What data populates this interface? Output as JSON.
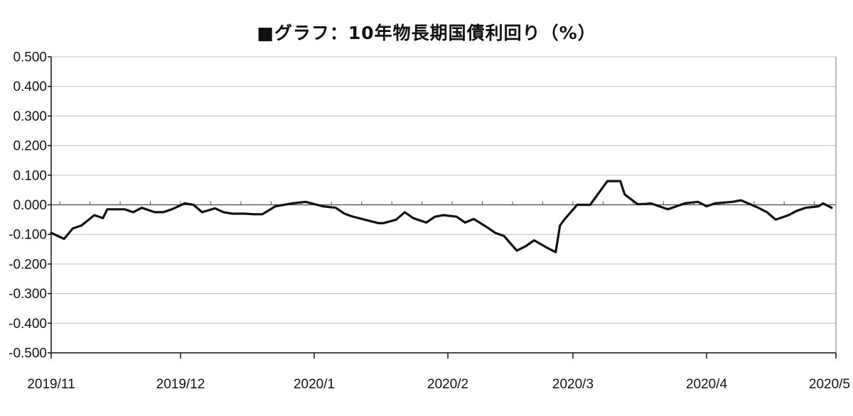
{
  "chart_data": {
    "type": "line",
    "title": "■グラフ：10年物長期国債利回り（%）",
    "xlabel": "",
    "ylabel": "",
    "ylim": [
      -0.5,
      0.5
    ],
    "yticks": [
      "0.500",
      "0.400",
      "0.300",
      "0.200",
      "0.100",
      "0.000",
      "-0.100",
      "-0.200",
      "-0.300",
      "-0.400",
      "-0.500"
    ],
    "ytick_values": [
      0.5,
      0.4,
      0.3,
      0.2,
      0.1,
      0.0,
      -0.1,
      -0.2,
      -0.3,
      -0.4,
      -0.5
    ],
    "xlim": [
      "2019-11-01",
      "2020-05-01"
    ],
    "xticks": [
      {
        "label": "2019/11",
        "date": "2019-11-01"
      },
      {
        "label": "2019/12",
        "date": "2019-12-01"
      },
      {
        "label": "2020/1",
        "date": "2020-01-01"
      },
      {
        "label": "2020/2",
        "date": "2020-02-01"
      },
      {
        "label": "2020/3",
        "date": "2020-03-01"
      },
      {
        "label": "2020/4",
        "date": "2020-04-01"
      },
      {
        "label": "2020/5",
        "date": "2020-05-01"
      }
    ],
    "grid": true,
    "line_color": "#111111",
    "grid_color": "#bbbbbb",
    "series": [
      {
        "x": [
          "2019-11-01",
          "2019-11-04",
          "2019-11-06",
          "2019-11-08",
          "2019-11-11",
          "2019-11-13",
          "2019-11-14",
          "2019-11-18",
          "2019-11-20",
          "2019-11-22",
          "2019-11-25",
          "2019-11-27",
          "2019-11-29",
          "2019-12-02",
          "2019-12-04",
          "2019-12-06",
          "2019-12-09",
          "2019-12-11",
          "2019-12-13",
          "2019-12-16",
          "2019-12-18",
          "2019-12-20",
          "2019-12-23",
          "2019-12-25",
          "2019-12-27",
          "2019-12-30",
          "2020-01-03",
          "2020-01-06",
          "2020-01-08",
          "2020-01-10",
          "2020-01-14",
          "2020-01-16",
          "2020-01-17",
          "2020-01-20",
          "2020-01-22",
          "2020-01-24",
          "2020-01-27",
          "2020-01-29",
          "2020-01-31",
          "2020-02-03",
          "2020-02-05",
          "2020-02-07",
          "2020-02-10",
          "2020-02-12",
          "2020-02-14",
          "2020-02-17",
          "2020-02-19",
          "2020-02-21",
          "2020-02-24",
          "2020-02-26",
          "2020-02-27",
          "2020-02-28",
          "2020-03-02",
          "2020-03-03",
          "2020-03-05",
          "2020-03-09",
          "2020-03-10",
          "2020-03-12",
          "2020-03-13",
          "2020-03-16",
          "2020-03-18",
          "2020-03-19",
          "2020-03-23",
          "2020-03-25",
          "2020-03-27",
          "2020-03-30",
          "2020-04-01",
          "2020-04-03",
          "2020-04-07",
          "2020-04-09",
          "2020-04-13",
          "2020-04-15",
          "2020-04-17",
          "2020-04-20",
          "2020-04-22",
          "2020-04-24",
          "2020-04-27",
          "2020-04-28",
          "2020-04-30"
        ],
        "y": [
          -0.095,
          -0.115,
          -0.08,
          -0.07,
          -0.035,
          -0.045,
          -0.015,
          -0.015,
          -0.025,
          -0.01,
          -0.025,
          -0.025,
          -0.015,
          0.005,
          0.0,
          -0.025,
          -0.012,
          -0.025,
          -0.03,
          -0.03,
          -0.032,
          -0.032,
          -0.005,
          0.0,
          0.005,
          0.01,
          -0.005,
          -0.01,
          -0.03,
          -0.04,
          -0.055,
          -0.062,
          -0.062,
          -0.05,
          -0.025,
          -0.045,
          -0.06,
          -0.04,
          -0.035,
          -0.04,
          -0.06,
          -0.048,
          -0.075,
          -0.095,
          -0.105,
          -0.155,
          -0.14,
          -0.12,
          -0.145,
          -0.16,
          -0.07,
          -0.05,
          0.0,
          0.0,
          0.0,
          0.08,
          0.08,
          0.08,
          0.035,
          0.002,
          0.003,
          0.005,
          -0.015,
          -0.005,
          0.005,
          0.01,
          -0.005,
          0.005,
          0.01,
          0.015,
          -0.01,
          -0.025,
          -0.05,
          -0.035,
          -0.02,
          -0.01,
          -0.005,
          0.005,
          -0.01
        ]
      }
    ]
  }
}
